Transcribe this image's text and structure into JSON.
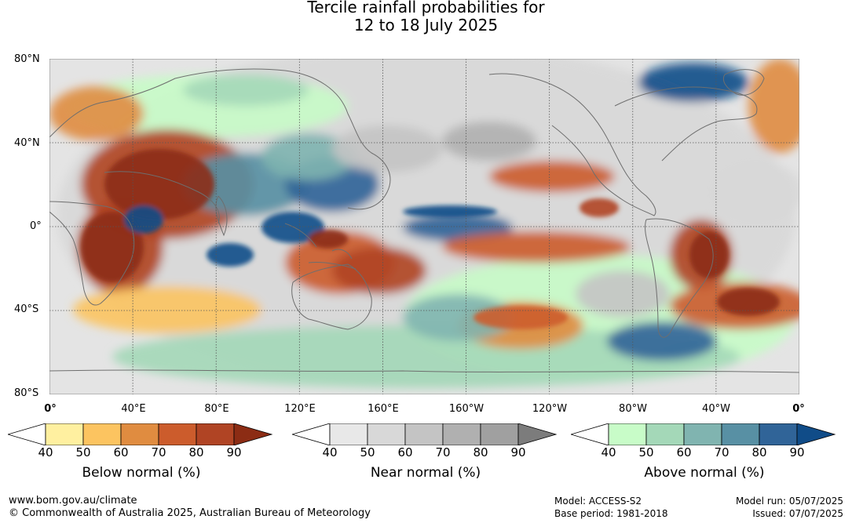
{
  "title": {
    "line1": "Tercile rainfall probabilities for",
    "line2": "12 to 18 July 2025"
  },
  "map": {
    "lat_labels": [
      "80°N",
      "40°N",
      "0°",
      "40°S",
      "80°S"
    ],
    "lon_labels": [
      "0°",
      "40°E",
      "80°E",
      "120°E",
      "160°E",
      "160°W",
      "120°W",
      "80°W",
      "40°W",
      "0°"
    ],
    "colors": {
      "ocean_base": "#ffffff",
      "coastline": "#6e6e6e",
      "gridline": "#555555"
    }
  },
  "colorbars": [
    {
      "name": "below",
      "label": "Below normal (%)",
      "ticks": [
        "40",
        "50",
        "60",
        "70",
        "80",
        "90"
      ],
      "colors": [
        "#fff0a0",
        "#fcc460",
        "#e08c40",
        "#cc5c2c",
        "#b04424",
        "#8c2c14"
      ]
    },
    {
      "name": "near",
      "label": "Near normal (%)",
      "ticks": [
        "40",
        "50",
        "60",
        "70",
        "80",
        "90"
      ],
      "colors": [
        "#e8e8e8",
        "#d8d8d8",
        "#c4c4c4",
        "#b0b0b0",
        "#a0a0a0",
        "#7c7c7c"
      ]
    },
    {
      "name": "above",
      "label": "Above normal (%)",
      "ticks": [
        "40",
        "50",
        "60",
        "70",
        "80",
        "90"
      ],
      "colors": [
        "#c8fcc8",
        "#a4d8b8",
        "#80b4b0",
        "#5890a4",
        "#306498",
        "#104c88"
      ]
    }
  ],
  "footer": {
    "url": "www.bom.gov.au/climate",
    "copyright": "© Commonwealth of Australia 2025, Australian Bureau of Meteorology",
    "model": "Model: ACCESS-S2",
    "base_period": "Base period: 1981-2018",
    "model_run": "Model run: 05/07/2025",
    "issued": "Issued: 07/07/2025"
  }
}
